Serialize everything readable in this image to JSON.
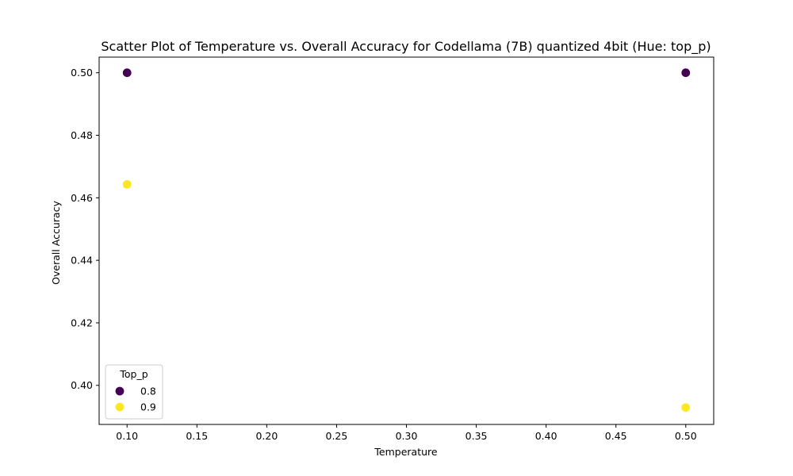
{
  "chart_data": {
    "type": "scatter",
    "title": "Scatter Plot of Temperature vs. Overall Accuracy for Codellama (7B) quantized 4bit (Hue: top_p)",
    "xlabel": "Temperature",
    "ylabel": "Overall Accuracy",
    "xlim": [
      0.08,
      0.52
    ],
    "ylim": [
      0.3875,
      0.505
    ],
    "xticks": [
      0.1,
      0.15,
      0.2,
      0.25,
      0.3,
      0.35,
      0.4,
      0.45,
      0.5
    ],
    "xtick_labels": [
      "0.10",
      "0.15",
      "0.20",
      "0.25",
      "0.30",
      "0.35",
      "0.40",
      "0.45",
      "0.50"
    ],
    "yticks": [
      0.4,
      0.42,
      0.44,
      0.46,
      0.48,
      0.5
    ],
    "ytick_labels": [
      "0.40",
      "0.42",
      "0.44",
      "0.46",
      "0.48",
      "0.50"
    ],
    "grid": false,
    "legend": {
      "title": "Top_p",
      "placement": "lower-left"
    },
    "series": [
      {
        "name": "0.8",
        "color": "#440154",
        "points": [
          {
            "x": 0.1,
            "y": 0.5
          },
          {
            "x": 0.5,
            "y": 0.5
          }
        ]
      },
      {
        "name": "0.9",
        "color": "#fde725",
        "points": [
          {
            "x": 0.1,
            "y": 0.4643
          },
          {
            "x": 0.5,
            "y": 0.3929
          }
        ]
      }
    ]
  }
}
